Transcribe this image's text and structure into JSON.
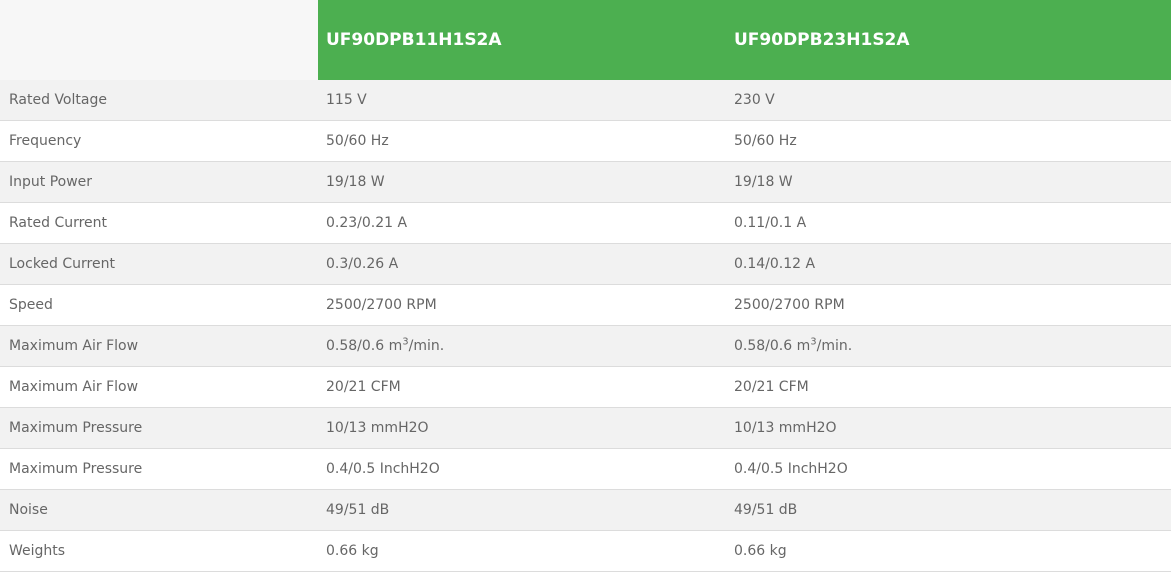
{
  "header": {
    "models": [
      "UF90DPB11H1S2A",
      "UF90DPB23H1S2A"
    ]
  },
  "colors": {
    "header_green": "#4caf50",
    "row_alt": "#f2f2f2",
    "text": "#666666"
  },
  "rows": [
    {
      "label": "Rated Voltage",
      "values": [
        [
          "115 V"
        ],
        [
          "230 V"
        ]
      ]
    },
    {
      "label": "Frequency",
      "values": [
        [
          "50/60 Hz"
        ],
        [
          "50/60 Hz"
        ]
      ]
    },
    {
      "label": "Input Power",
      "values": [
        [
          "19/18 W"
        ],
        [
          "19/18 W"
        ]
      ]
    },
    {
      "label": "Rated Current",
      "values": [
        [
          "0.23/0.21 A"
        ],
        [
          "0.11/0.1 A"
        ]
      ]
    },
    {
      "label": "Locked Current",
      "values": [
        [
          "0.3/0.26 A"
        ],
        [
          "0.14/0.12 A"
        ]
      ]
    },
    {
      "label": "Speed",
      "values": [
        [
          "2500/2700 RPM"
        ],
        [
          "2500/2700 RPM"
        ]
      ]
    },
    {
      "label": "Maximum Air Flow",
      "values": [
        [
          "0.58/0.6 m",
          "3",
          "/min."
        ],
        [
          "0.58/0.6 m",
          "3",
          "/min."
        ]
      ]
    },
    {
      "label": "Maximum Air Flow",
      "values": [
        [
          "20/21 CFM"
        ],
        [
          "20/21 CFM"
        ]
      ]
    },
    {
      "label": "Maximum Pressure",
      "values": [
        [
          "10/13 mmH2O"
        ],
        [
          "10/13 mmH2O"
        ]
      ]
    },
    {
      "label": "Maximum Pressure",
      "values": [
        [
          "0.4/0.5 InchH2O"
        ],
        [
          "0.4/0.5 InchH2O"
        ]
      ]
    },
    {
      "label": "Noise",
      "values": [
        [
          "49/51 dB"
        ],
        [
          "49/51 dB"
        ]
      ]
    },
    {
      "label": "Weights",
      "values": [
        [
          "0.66 kg"
        ],
        [
          "0.66 kg"
        ]
      ]
    }
  ]
}
